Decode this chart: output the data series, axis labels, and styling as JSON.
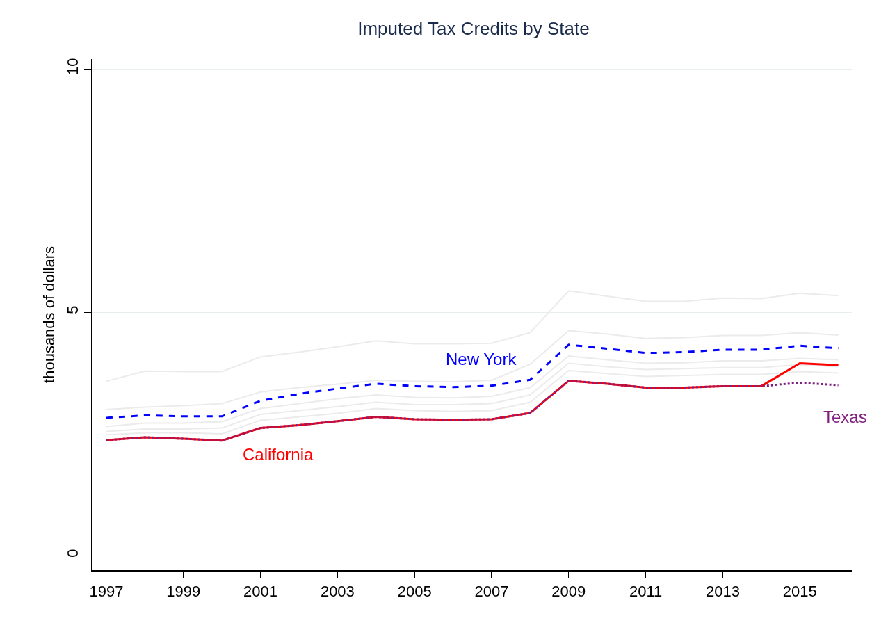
{
  "chart_data": {
    "type": "line",
    "title": "Imputed Tax Credits by State",
    "ylabel": "thousands of dollars",
    "x": [
      1997,
      1998,
      1999,
      2000,
      2001,
      2002,
      2003,
      2004,
      2005,
      2006,
      2007,
      2008,
      2009,
      2010,
      2011,
      2012,
      2013,
      2014,
      2015,
      2016
    ],
    "series": [
      {
        "name": "California",
        "color": "#ff0000",
        "line_style": "solid",
        "values": [
          2.37,
          2.43,
          2.4,
          2.36,
          2.62,
          2.68,
          2.76,
          2.85,
          2.8,
          2.79,
          2.8,
          2.93,
          3.59,
          3.53,
          3.45,
          3.45,
          3.48,
          3.48,
          3.95,
          3.91
        ]
      },
      {
        "name": "New York",
        "color": "#0000ff",
        "line_style": "dashed",
        "values": [
          2.83,
          2.88,
          2.86,
          2.86,
          3.18,
          3.32,
          3.43,
          3.53,
          3.48,
          3.46,
          3.49,
          3.61,
          4.33,
          4.25,
          4.16,
          4.18,
          4.23,
          4.23,
          4.31,
          4.26
        ]
      },
      {
        "name": "Texas",
        "color": "#7f1f7f",
        "line_style": "dotted",
        "values": [
          2.37,
          2.43,
          2.4,
          2.36,
          2.62,
          2.68,
          2.76,
          2.85,
          2.8,
          2.79,
          2.8,
          2.93,
          3.59,
          3.53,
          3.45,
          3.45,
          3.48,
          3.48,
          3.55,
          3.5
        ]
      },
      {
        "color": "#ebebeb",
        "line_style": "solid",
        "values": [
          3.58,
          3.79,
          3.78,
          3.78,
          4.08,
          4.18,
          4.29,
          4.41,
          4.35,
          4.35,
          4.36,
          4.58,
          5.44,
          5.33,
          5.22,
          5.22,
          5.29,
          5.28,
          5.39,
          5.34
        ]
      },
      {
        "color": "#ebebeb",
        "line_style": "solid",
        "values": [
          3.0,
          3.05,
          3.08,
          3.12,
          3.36,
          3.45,
          3.52,
          3.6,
          3.58,
          3.57,
          3.6,
          3.93,
          4.62,
          4.55,
          4.46,
          4.48,
          4.52,
          4.52,
          4.58,
          4.53
        ]
      },
      {
        "color": "#ebebeb",
        "line_style": "solid",
        "values": [
          2.65,
          2.72,
          2.72,
          2.75,
          3.02,
          3.12,
          3.22,
          3.3,
          3.25,
          3.24,
          3.27,
          3.45,
          4.1,
          4.02,
          3.95,
          3.96,
          4.0,
          4.0,
          4.05,
          4.02
        ]
      },
      {
        "color": "#ebebeb",
        "line_style": "solid",
        "values": [
          2.55,
          2.6,
          2.6,
          2.62,
          2.9,
          2.98,
          3.06,
          3.15,
          3.1,
          3.1,
          3.12,
          3.3,
          3.95,
          3.88,
          3.82,
          3.84,
          3.86,
          3.86,
          3.92,
          3.88
        ]
      },
      {
        "color": "#ebebeb",
        "line_style": "solid",
        "values": [
          2.48,
          2.52,
          2.52,
          2.5,
          2.78,
          2.85,
          2.92,
          3.02,
          2.98,
          2.96,
          2.98,
          3.15,
          3.8,
          3.74,
          3.68,
          3.7,
          3.72,
          3.72,
          3.78,
          3.75
        ]
      }
    ],
    "xlim": [
      1996.64,
      2016.35
    ],
    "xticks": [
      1997,
      1999,
      2001,
      2003,
      2005,
      2007,
      2009,
      2011,
      2013,
      2015
    ],
    "ylim": [
      -0.3,
      10.2
    ],
    "yticks": [
      0,
      5,
      10
    ],
    "grid": "y",
    "legend": false
  }
}
